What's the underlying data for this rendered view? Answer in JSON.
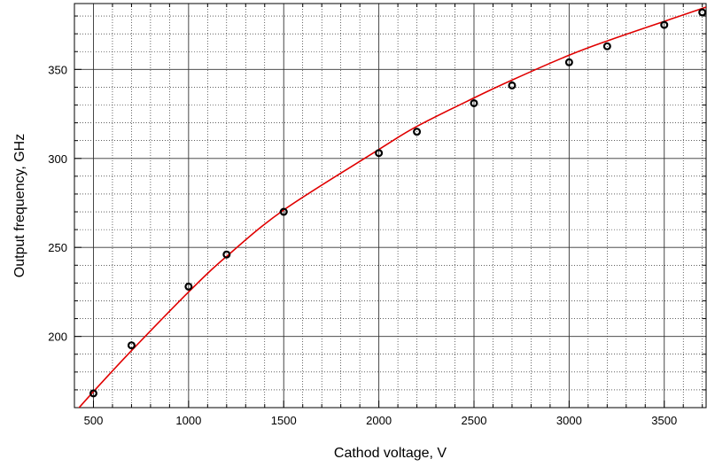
{
  "chart_data": {
    "type": "scatter",
    "title": "",
    "xlabel": "Cathod voltage, V",
    "ylabel": "Output frequency, GHz",
    "xlim": [
      400,
      3720
    ],
    "ylim": [
      160,
      387
    ],
    "x_ticks": [
      500,
      1000,
      1500,
      2000,
      2500,
      3000,
      3500
    ],
    "y_ticks": [
      200,
      250,
      300,
      350
    ],
    "grid": "major solid, minor dotted",
    "series": [
      {
        "kind": "markers",
        "color": "#000000",
        "x": [
          500,
          700,
          1000,
          1200,
          1500,
          2000,
          2200,
          2500,
          2700,
          3000,
          3200,
          3500,
          3700
        ],
        "y": [
          168,
          195,
          228,
          246,
          270,
          303,
          315,
          331,
          341,
          354,
          363,
          375,
          382
        ]
      },
      {
        "kind": "fit-curve",
        "color": "#e00000",
        "x": [
          400,
          500,
          700,
          1000,
          1200,
          1500,
          2000,
          2200,
          2500,
          2700,
          3000,
          3200,
          3500,
          3720
        ],
        "y": [
          157,
          169,
          192,
          225,
          245,
          271,
          305,
          318,
          334,
          344,
          358,
          366,
          377,
          385
        ]
      }
    ]
  }
}
